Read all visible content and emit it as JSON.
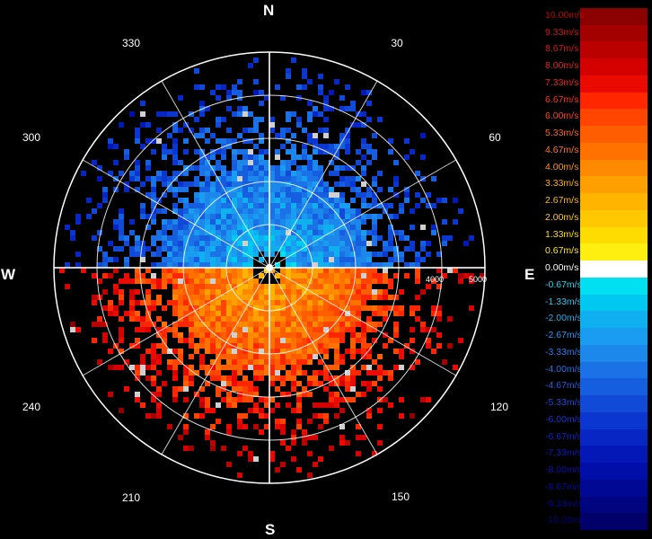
{
  "compass": {
    "north": "N",
    "south": "S",
    "east": "E",
    "west": "W"
  },
  "azimuth_labels": [
    "30",
    "60",
    "120",
    "150",
    "210",
    "240",
    "300",
    "330"
  ],
  "range_labels": [
    "4000",
    "5000"
  ],
  "legend": {
    "entries": [
      {
        "label": "10.00m/s",
        "color": "#8b0000",
        "text": "#c00000"
      },
      {
        "label": "9.33m/s",
        "color": "#a30000",
        "text": "#d01010"
      },
      {
        "label": "8.67m/s",
        "color": "#bb0000",
        "text": "#d81818"
      },
      {
        "label": "8.00m/s",
        "color": "#d40000",
        "text": "#e02020"
      },
      {
        "label": "7.33m/s",
        "color": "#ea0a00",
        "text": "#f02020"
      },
      {
        "label": "6.67m/s",
        "color": "#ff2600",
        "text": "#ff3020"
      },
      {
        "label": "6.00m/s",
        "color": "#ff4500",
        "text": "#ff4020"
      },
      {
        "label": "5.33m/s",
        "color": "#ff5e00",
        "text": "#ff6020"
      },
      {
        "label": "4.67m/s",
        "color": "#ff7200",
        "text": "#ff7820"
      },
      {
        "label": "4.00m/s",
        "color": "#ff8a00",
        "text": "#ff9020"
      },
      {
        "label": "3.33m/s",
        "color": "#ffa000",
        "text": "#ffa820"
      },
      {
        "label": "2.67m/s",
        "color": "#ffb400",
        "text": "#ffb820"
      },
      {
        "label": "2.00m/s",
        "color": "#ffc800",
        "text": "#ffc820"
      },
      {
        "label": "1.33m/s",
        "color": "#ffdc00",
        "text": "#ffd820"
      },
      {
        "label": "0.67m/s",
        "color": "#ffef10",
        "text": "#ffe820"
      },
      {
        "label": "0.00m/s",
        "color": "#ffffff",
        "text": "#ffffff"
      },
      {
        "label": "-0.67m/s",
        "color": "#00e0f0",
        "text": "#20d8f0"
      },
      {
        "label": "-1.33m/s",
        "color": "#00c8f0",
        "text": "#20c8f0"
      },
      {
        "label": "-2.00m/s",
        "color": "#10b0f0",
        "text": "#20b0f0"
      },
      {
        "label": "-2.67m/s",
        "color": "#1a9cf0",
        "text": "#2098f0"
      },
      {
        "label": "-3.33m/s",
        "color": "#1c88ec",
        "text": "#2080f0"
      },
      {
        "label": "-4.00m/s",
        "color": "#1a72e6",
        "text": "#2070e8"
      },
      {
        "label": "-4.67m/s",
        "color": "#165ee0",
        "text": "#1c5ce0"
      },
      {
        "label": "-5.33m/s",
        "color": "#124ad8",
        "text": "#1848d8"
      },
      {
        "label": "-6.00m/s",
        "color": "#0c36d0",
        "text": "#1434d0"
      },
      {
        "label": "-6.67m/s",
        "color": "#0826c4",
        "text": "#1024c8"
      },
      {
        "label": "-7.33m/s",
        "color": "#0418b8",
        "text": "#0c18c0"
      },
      {
        "label": "-8.00m/s",
        "color": "#020ea8",
        "text": "#0810b0"
      },
      {
        "label": "-8.67m/s",
        "color": "#000894",
        "text": "#0408a0"
      },
      {
        "label": "-9.33m/s",
        "color": "#00047e",
        "text": "#000490"
      },
      {
        "label": "-10.00m/s",
        "color": "#000068",
        "text": "#000080"
      }
    ]
  }
}
